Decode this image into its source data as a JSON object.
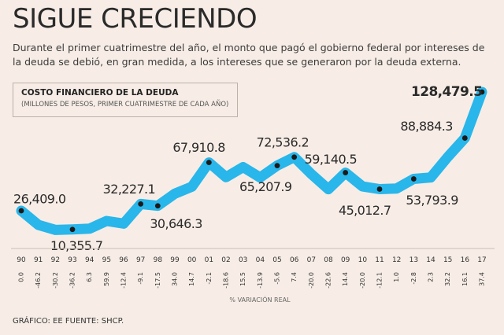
{
  "title": "SIGUE CRECIENDO",
  "subtitle": "Durante el primer cuatrimestre del año, el monto que pagó el gobierno federal por intereses de la deuda se debió, en gran medida, a los intereses que se generaron por la deuda externa.",
  "legend": {
    "title": "COSTO FINANCIERO DE LA DEUDA",
    "subtitle": "(MILLONES DE PESOS, PRIMER CUATRIMESTRE DE CADA AÑO)"
  },
  "footer": "GRÁFICO: EE  FUENTE: SHCP.",
  "colors": {
    "line": "#29b6ea",
    "background": "#f7ede6",
    "marker": "#1a1a1a"
  },
  "chart_data": {
    "type": "line",
    "title": "COSTO FINANCIERO DE LA DEUDA",
    "categories": [
      "90",
      "91",
      "92",
      "93",
      "94",
      "95",
      "96",
      "97",
      "98",
      "99",
      "00",
      "01",
      "02",
      "03",
      "04",
      "05",
      "06",
      "07",
      "08",
      "09",
      "10",
      "11",
      "12",
      "13",
      "14",
      "15",
      "16",
      "17"
    ],
    "pct_change": [
      "0.0",
      "-46.2",
      "-30.2",
      "-36.2",
      "6.3",
      "59.9",
      "-12.4",
      "-9.1",
      "-17.5",
      "34.0",
      "14.7",
      "-2.1",
      "-18.6",
      "15.5",
      "-13.9",
      "-5.6",
      "7.4",
      "-20.0",
      "-22.6",
      "14.4",
      "-20.0",
      "-12.1",
      "1.0",
      "-2.8",
      "2.3",
      "32.2",
      "16.1",
      "37.4"
    ],
    "pct_label": "% VARIACIÓN REAL",
    "values": [
      26409.0,
      14200,
      9900,
      10355.7,
      11000,
      17600,
      15400,
      32227.1,
      30646.3,
      41100,
      47100,
      67910.8,
      55300,
      63900,
      55000,
      65207.9,
      72536.2,
      58000,
      44900,
      59140.5,
      47300,
      45012.7,
      45500,
      53793.9,
      55000,
      72700,
      88884.3,
      128479.5
    ],
    "markers": [
      {
        "index": 0,
        "label": "26,409.0"
      },
      {
        "index": 3,
        "label": "10,355.7"
      },
      {
        "index": 7,
        "label": "32,227.1"
      },
      {
        "index": 8,
        "label": "30,646.3"
      },
      {
        "index": 11,
        "label": "67,910.8"
      },
      {
        "index": 15,
        "label": "65,207.9"
      },
      {
        "index": 16,
        "label": "72,536.2"
      },
      {
        "index": 19,
        "label": "59,140.5"
      },
      {
        "index": 21,
        "label": "45,012.7"
      },
      {
        "index": 23,
        "label": "53,793.9"
      },
      {
        "index": 26,
        "label": "88,884.3"
      },
      {
        "index": 27,
        "label": "128,479.5"
      }
    ],
    "ylim": [
      0,
      135000
    ]
  }
}
